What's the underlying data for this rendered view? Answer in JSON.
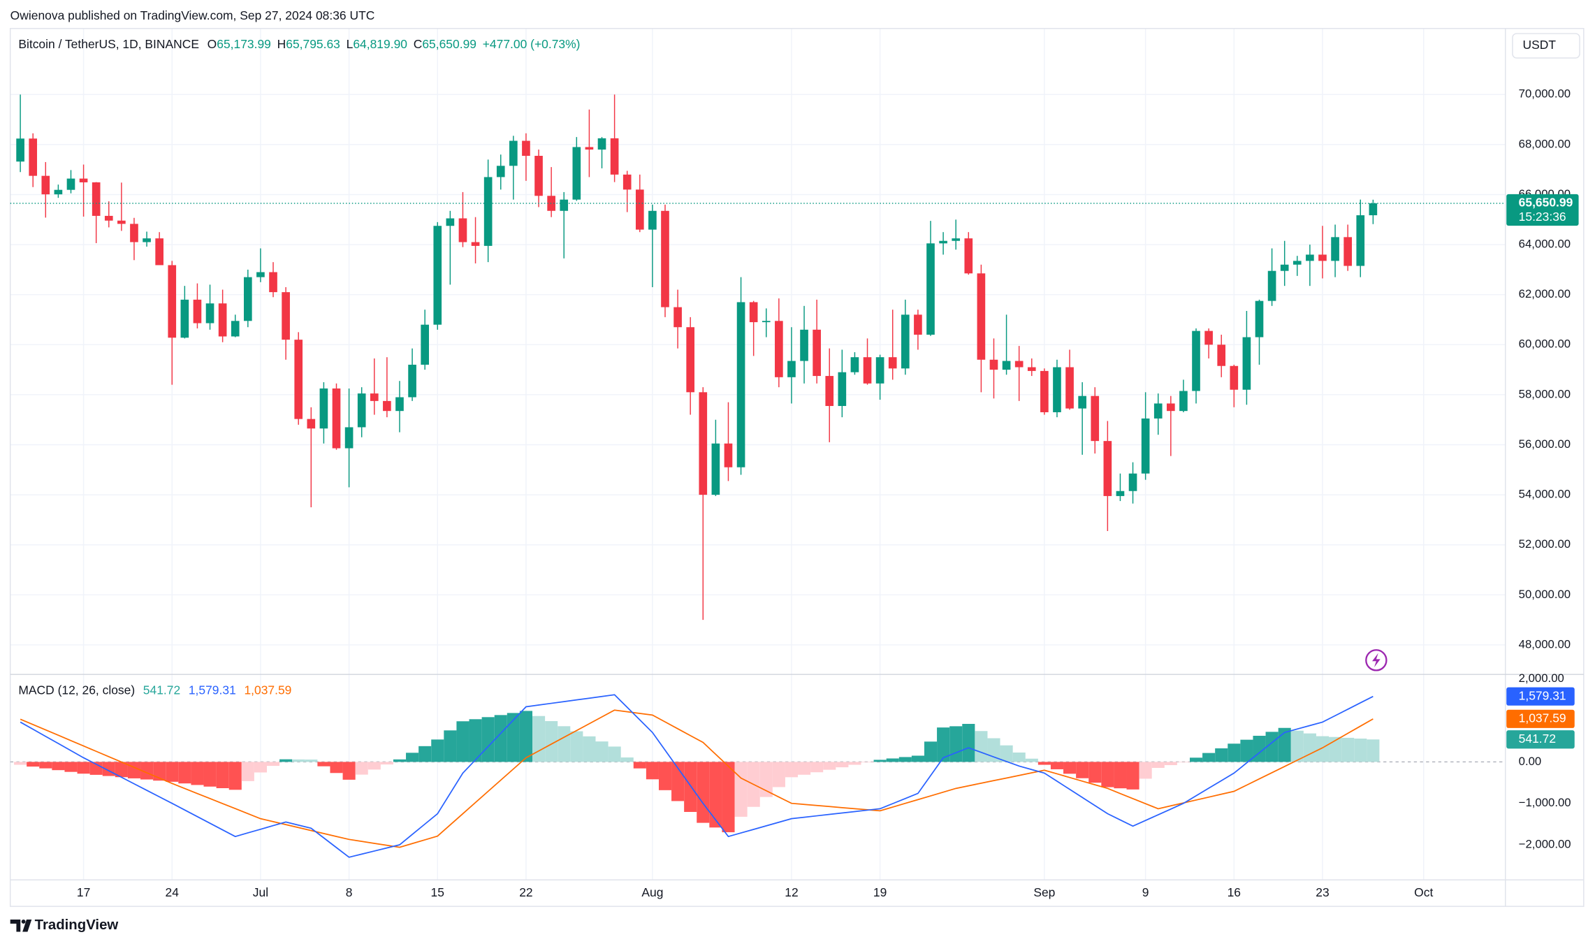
{
  "header": {
    "published": "Owienova published on TradingView.com, Sep 27, 2024 08:36 UTC",
    "currency": "USDT",
    "brand": "TradingView"
  },
  "chart_data": [
    {
      "type": "candlestick",
      "symbol": "Bitcoin / TetherUS, 1D, BINANCE",
      "legend": [
        {
          "key": "O",
          "value": "65,173.99"
        },
        {
          "key": "H",
          "value": "65,795.63"
        },
        {
          "key": "L",
          "value": "64,819.90"
        },
        {
          "key": "C",
          "value": "65,650.99"
        }
      ],
      "change": "+477.00 (+0.73%)",
      "last_price_label": "65,650.99",
      "countdown": "15:23:36",
      "up_color": "#089981",
      "down_color": "#f23645",
      "grid": true,
      "categories": [
        null,
        null,
        null,
        null,
        null,
        "17",
        null,
        null,
        null,
        null,
        null,
        null,
        "24",
        null,
        null,
        null,
        null,
        null,
        null,
        "Jul",
        null,
        null,
        null,
        null,
        null,
        null,
        "8",
        null,
        null,
        null,
        null,
        null,
        null,
        "15",
        null,
        null,
        null,
        null,
        null,
        null,
        "22",
        null,
        null,
        null,
        null,
        null,
        null,
        null,
        null,
        null,
        "Aug",
        null,
        null,
        null,
        null,
        null,
        null,
        null,
        null,
        null,
        null,
        "12",
        null,
        null,
        null,
        null,
        null,
        null,
        "19",
        null,
        null,
        null,
        null,
        null,
        null,
        null,
        null,
        null,
        null,
        null,
        null,
        "Sep",
        null,
        null,
        null,
        null,
        null,
        null,
        null,
        "9",
        null,
        null,
        null,
        null,
        null,
        null,
        "16",
        null,
        null,
        null,
        null,
        null,
        null,
        "23",
        null,
        null,
        null,
        null,
        null,
        null,
        null,
        "Oct"
      ],
      "open": [
        67320,
        68240,
        66750,
        66010,
        66190,
        66640,
        66490,
        65150,
        64960,
        64830,
        64100,
        64250,
        63180,
        60280,
        61800,
        60860,
        61650,
        60330,
        60950,
        62700,
        62900,
        62100,
        60200,
        57030,
        56650,
        58250,
        55860,
        56700,
        58050,
        57750,
        57350,
        57900,
        59200,
        60800,
        64750,
        65050,
        64100,
        63950,
        66700,
        67150,
        68150,
        67550,
        65950,
        65350,
        65800,
        67900,
        67800,
        68250,
        66800,
        66200,
        64600,
        65350,
        61500,
        60700,
        58100,
        54000,
        56050,
        55100,
        61700,
        60900,
        60950,
        58700,
        59350,
        60600,
        58750,
        57550,
        58900,
        59500,
        58450,
        59500,
        59050,
        61200,
        60400,
        64050,
        64150,
        64250,
        62850,
        59400,
        59000,
        59350,
        59100,
        58950,
        57300,
        59100,
        57450,
        57950,
        56150,
        53950,
        54150,
        54850,
        57050,
        57650,
        57350,
        58150,
        60550,
        60000,
        59150,
        58200,
        60300,
        61750,
        62950,
        63200,
        63350,
        63600,
        63350,
        64300,
        63150,
        65173.99,
        null,
        null,
        null,
        null
      ],
      "high": [
        69999,
        68450,
        67300,
        66400,
        66980,
        67200,
        66500,
        65730,
        66480,
        65070,
        64520,
        64500,
        63350,
        62350,
        62450,
        62400,
        62200,
        61200,
        63000,
        63850,
        63300,
        62300,
        60500,
        57500,
        58500,
        58450,
        58250,
        58300,
        59450,
        59500,
        58550,
        59850,
        61400,
        64900,
        65350,
        66100,
        65100,
        67400,
        67600,
        68350,
        68450,
        67800,
        67100,
        66100,
        68300,
        69400,
        68300,
        70000,
        66950,
        66800,
        65600,
        65600,
        62200,
        61100,
        58300,
        57000,
        57700,
        62700,
        61750,
        61450,
        61850,
        60700,
        61550,
        61800,
        59850,
        59800,
        59700,
        60250,
        59600,
        61400,
        61800,
        61400,
        64950,
        64500,
        65000,
        64500,
        63200,
        60250,
        61200,
        59950,
        59450,
        59050,
        59400,
        59800,
        58500,
        58300,
        56950,
        54850,
        55300,
        58100,
        58050,
        57950,
        58600,
        60650,
        60650,
        60400,
        59200,
        61350,
        61800,
        63850,
        64150,
        63550,
        64000,
        64750,
        64800,
        64800,
        65800,
        65795.63,
        null,
        null,
        null,
        null
      ],
      "low": [
        66900,
        66300,
        65080,
        65870,
        66050,
        65120,
        64060,
        64690,
        64550,
        63380,
        63920,
        63200,
        58400,
        60250,
        60650,
        60600,
        60100,
        60300,
        60700,
        62500,
        61900,
        59400,
        56800,
        53500,
        56050,
        55800,
        54300,
        56300,
        57200,
        57100,
        56500,
        57750,
        59000,
        60600,
        62400,
        63900,
        63250,
        63300,
        66200,
        65800,
        66550,
        65500,
        65100,
        63450,
        65750,
        66700,
        67050,
        66500,
        65300,
        64500,
        62300,
        61100,
        59850,
        57200,
        49000,
        53950,
        54550,
        54800,
        59550,
        60300,
        58300,
        57650,
        58450,
        58450,
        56100,
        57100,
        58800,
        58400,
        57800,
        58600,
        58800,
        59800,
        60350,
        63600,
        63800,
        62800,
        58100,
        57850,
        58800,
        57750,
        58750,
        57200,
        57100,
        57400,
        55600,
        55650,
        52550,
        53750,
        53650,
        54600,
        56400,
        55550,
        57300,
        57650,
        59450,
        58700,
        57500,
        57600,
        59200,
        61550,
        62350,
        62750,
        62350,
        62650,
        62700,
        62950,
        62700,
        64819.9,
        null,
        null,
        null,
        null
      ],
      "close": [
        68240,
        66750,
        66010,
        66190,
        66640,
        66490,
        65150,
        64960,
        64830,
        64100,
        64250,
        63180,
        60280,
        61800,
        60860,
        61650,
        60330,
        60950,
        62700,
        62900,
        62100,
        60200,
        57030,
        56650,
        58250,
        55860,
        56700,
        58050,
        57750,
        57350,
        57900,
        59200,
        60800,
        64750,
        65050,
        64100,
        63950,
        66700,
        67150,
        68150,
        67550,
        65950,
        65350,
        65800,
        67900,
        67800,
        68250,
        66800,
        66200,
        64600,
        65350,
        61500,
        60700,
        58100,
        54000,
        56050,
        55100,
        61700,
        60900,
        60950,
        58700,
        59350,
        60600,
        58750,
        57550,
        58900,
        59500,
        58450,
        59500,
        59050,
        61200,
        60400,
        64050,
        64150,
        64250,
        62850,
        59400,
        59000,
        59350,
        59100,
        58950,
        57300,
        59100,
        57450,
        57950,
        56150,
        53950,
        54150,
        54850,
        57050,
        57650,
        57350,
        58150,
        60550,
        60000,
        59150,
        58200,
        60300,
        61750,
        62950,
        63200,
        63350,
        63600,
        63350,
        64300,
        63150,
        65173.99,
        65650.99,
        null,
        null,
        null,
        null
      ],
      "ylim": [
        46860,
        72640
      ],
      "yticks": [
        {
          "value": 48000,
          "label": "48,000.00"
        },
        {
          "value": 50000,
          "label": "50,000.00"
        },
        {
          "value": 52000,
          "label": "52,000.00"
        },
        {
          "value": 54000,
          "label": "54,000.00"
        },
        {
          "value": 56000,
          "label": "56,000.00"
        },
        {
          "value": 58000,
          "label": "58,000.00"
        },
        {
          "value": 60000,
          "label": "60,000.00"
        },
        {
          "value": 62000,
          "label": "62,000.00"
        },
        {
          "value": 64000,
          "label": "64,000.00"
        },
        {
          "value": 66000,
          "label": "66,000.00"
        },
        {
          "value": 68000,
          "label": "68,000.00"
        },
        {
          "value": 70000,
          "label": "70,000.00"
        }
      ]
    },
    {
      "type": "macd",
      "title": "MACD (12, 26, close)",
      "legend_values": [
        "541.72",
        "1,579.31",
        "1,037.59"
      ],
      "macd_color": "#2962ff",
      "signal_color": "#ff6d00",
      "hist_colors": {
        "up_rising": "#26a69a",
        "up_falling": "#b2dfdb",
        "down_falling": "#ff5252",
        "down_rising": "#ffcdd2"
      },
      "macd": [
        960,
        788,
        616,
        444,
        272,
        100,
        -57,
        -214,
        -371,
        -529,
        -686,
        -843,
        -1000,
        -1160,
        -1320,
        -1480,
        -1640,
        -1800,
        -1712,
        -1625,
        -1537,
        -1450,
        -1525,
        -1600,
        -1833,
        -2067,
        -2300,
        -2225,
        -2150,
        -2075,
        -2000,
        -1750,
        -1500,
        -1250,
        -760,
        -270,
        50,
        370,
        690,
        1010,
        1330,
        1371,
        1413,
        1454,
        1496,
        1537,
        1579,
        1620,
        1317,
        1013,
        710,
        283,
        -145,
        -572,
        -1000,
        -1400,
        -1800,
        -1714,
        -1628,
        -1542,
        -1456,
        -1370,
        -1336,
        -1301,
        -1267,
        -1233,
        -1199,
        -1164,
        -1130,
        -1007,
        -883,
        -760,
        -330,
        100,
        220,
        340,
        230,
        120,
        10,
        -100,
        -185,
        -270,
        -466,
        -662,
        -858,
        -1054,
        -1250,
        -1400,
        -1550,
        -1413,
        -1275,
        -1138,
        -1000,
        -818,
        -635,
        -453,
        -270,
        -25,
        220,
        465,
        710,
        793,
        877,
        960,
        1115,
        1270,
        1425,
        1579.31,
        null,
        null,
        null,
        null
      ],
      "signal": [
        1030,
        901,
        772,
        643,
        513,
        384,
        255,
        126,
        -3,
        -132,
        -262,
        -391,
        -520,
        -641,
        -763,
        -884,
        -1006,
        -1127,
        -1249,
        -1370,
        -1441,
        -1513,
        -1584,
        -1656,
        -1727,
        -1799,
        -1870,
        -1918,
        -1965,
        -2013,
        -2060,
        -1970,
        -1880,
        -1790,
        -1520,
        -1250,
        -980,
        -710,
        -440,
        -170,
        100,
        264,
        429,
        593,
        757,
        921,
        1086,
        1250,
        1210,
        1170,
        1130,
        965,
        800,
        635,
        470,
        183,
        -103,
        -390,
        -543,
        -695,
        -848,
        -1000,
        -1026,
        -1051,
        -1077,
        -1103,
        -1129,
        -1154,
        -1180,
        -1090,
        -1000,
        -910,
        -820,
        -730,
        -640,
        -577,
        -514,
        -451,
        -389,
        -326,
        -263,
        -200,
        -288,
        -376,
        -464,
        -552,
        -640,
        -763,
        -885,
        -1008,
        -1130,
        -1060,
        -990,
        -920,
        -850,
        -780,
        -710,
        -560,
        -410,
        -260,
        -110,
        40,
        190,
        340,
        514,
        689,
        863,
        1037.59,
        null,
        null,
        null,
        null
      ],
      "histogram": [
        -70,
        -113,
        -156,
        -199,
        -241,
        -284,
        -312,
        -340,
        -368,
        -397,
        -424,
        -452,
        -480,
        -519,
        -557,
        -596,
        -634,
        -673,
        -463,
        -255,
        -96,
        63,
        59,
        56,
        -106,
        -268,
        -430,
        -307,
        -185,
        -62,
        60,
        220,
        380,
        540,
        760,
        980,
        1030,
        1080,
        1130,
        1180,
        1230,
        1107,
        984,
        861,
        739,
        616,
        493,
        370,
        107,
        -157,
        -420,
        -682,
        -945,
        -1207,
        -1470,
        -1583,
        -1697,
        -1324,
        -1085,
        -847,
        -608,
        -370,
        -310,
        -250,
        -190,
        -130,
        -70,
        -10,
        50,
        83,
        117,
        150,
        490,
        830,
        860,
        917,
        744,
        571,
        399,
        226,
        78,
        -70,
        -178,
        -286,
        -394,
        -502,
        -610,
        -637,
        -665,
        -405,
        -145,
        -78,
        -10,
        102,
        215,
        327,
        440,
        535,
        630,
        725,
        820,
        753,
        687,
        620,
        601,
        581,
        562,
        541.72,
        null,
        null,
        null,
        null
      ],
      "ylim": [
        -2847,
        2110
      ],
      "yticks": [
        {
          "value": -2000,
          "label": "−2,000.00"
        },
        {
          "value": -1000,
          "label": "−1,000.00"
        },
        {
          "value": 0,
          "label": "0.00"
        },
        {
          "value": 2000,
          "label": "2,000.00"
        }
      ]
    }
  ]
}
